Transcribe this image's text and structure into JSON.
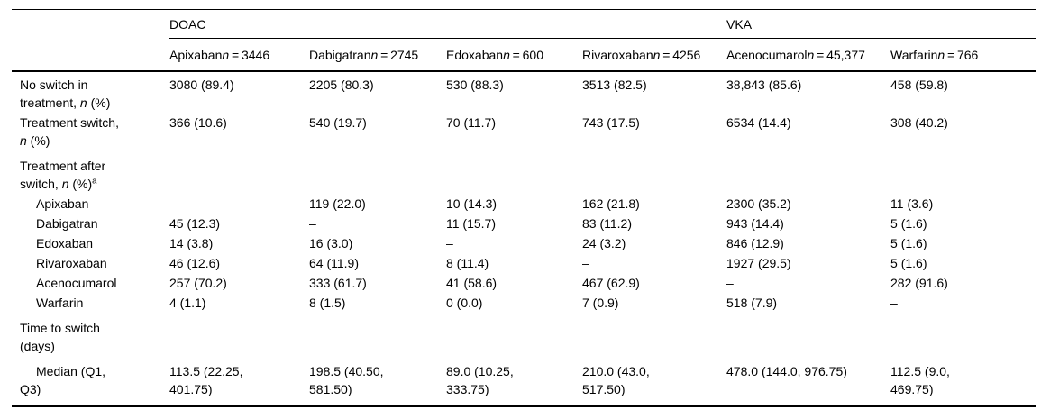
{
  "table": {
    "n_symbol": "n",
    "group_header": {
      "doac": "DOAC",
      "vka": "VKA"
    },
    "columns": [
      {
        "name": "Apixaban",
        "n": "3446"
      },
      {
        "name": "Dabigatran",
        "n": "2745"
      },
      {
        "name": "Edoxaban",
        "n": "600"
      },
      {
        "name": "Rivaroxaban",
        "n": "4256"
      },
      {
        "name": "Acenocumarol",
        "n": "45,377"
      },
      {
        "name": "Warfarin",
        "n": "766"
      }
    ],
    "rows": [
      {
        "name": "no-switch-in-treatment",
        "indent": false,
        "section_gap": false,
        "label": [
          {
            "t": "No switch in"
          },
          {
            "br": true
          },
          {
            "t": "treatment, "
          },
          {
            "t": "n",
            "i": true
          },
          {
            "t": " (%)"
          }
        ],
        "cells": [
          "3080 (89.4)",
          "2205 (80.3)",
          "530 (88.3)",
          "3513 (82.5)",
          "38,843 (85.6)",
          "458 (59.8)"
        ]
      },
      {
        "name": "treatment-switch",
        "indent": false,
        "section_gap": false,
        "label": [
          {
            "t": "Treatment switch,"
          },
          {
            "br": true
          },
          {
            "t": "n",
            "i": true
          },
          {
            "t": " (%)"
          }
        ],
        "cells": [
          "366 (10.6)",
          "540 (19.7)",
          "70 (11.7)",
          "743 (17.5)",
          "6534 (14.4)",
          "308 (40.2)"
        ]
      },
      {
        "name": "treatment-after-switch",
        "indent": false,
        "section_gap": true,
        "label": [
          {
            "t": "Treatment after"
          },
          {
            "br": true
          },
          {
            "t": "switch, "
          },
          {
            "t": "n",
            "i": true
          },
          {
            "t": " (%)"
          },
          {
            "t": "a",
            "sup": true
          }
        ],
        "cells": [
          "",
          "",
          "",
          "",
          "",
          ""
        ]
      },
      {
        "name": "after-switch-apixaban",
        "indent": true,
        "section_gap": false,
        "label": [
          {
            "t": "Apixaban"
          }
        ],
        "cells": [
          "–",
          "119 (22.0)",
          "10 (14.3)",
          "162 (21.8)",
          "2300 (35.2)",
          "11 (3.6)"
        ]
      },
      {
        "name": "after-switch-dabigatran",
        "indent": true,
        "section_gap": false,
        "label": [
          {
            "t": "Dabigatran"
          }
        ],
        "cells": [
          "45 (12.3)",
          "–",
          "11 (15.7)",
          "83 (11.2)",
          "943 (14.4)",
          "5 (1.6)"
        ]
      },
      {
        "name": "after-switch-edoxaban",
        "indent": true,
        "section_gap": false,
        "label": [
          {
            "t": "Edoxaban"
          }
        ],
        "cells": [
          "14 (3.8)",
          "16 (3.0)",
          "–",
          "24 (3.2)",
          "846 (12.9)",
          "5 (1.6)"
        ]
      },
      {
        "name": "after-switch-rivaroxaban",
        "indent": true,
        "section_gap": false,
        "label": [
          {
            "t": "Rivaroxaban"
          }
        ],
        "cells": [
          "46 (12.6)",
          "64 (11.9)",
          "8 (11.4)",
          "–",
          "1927 (29.5)",
          "5 (1.6)"
        ]
      },
      {
        "name": "after-switch-acenocumarol",
        "indent": true,
        "section_gap": false,
        "label": [
          {
            "t": "Acenocumarol"
          }
        ],
        "cells": [
          "257 (70.2)",
          "333 (61.7)",
          "41 (58.6)",
          "467 (62.9)",
          "–",
          "282 (91.6)"
        ]
      },
      {
        "name": "after-switch-warfarin",
        "indent": true,
        "section_gap": false,
        "label": [
          {
            "t": "Warfarin"
          }
        ],
        "cells": [
          "4 (1.1)",
          "8 (1.5)",
          "0 (0.0)",
          "7 (0.9)",
          "518 (7.9)",
          "–"
        ]
      },
      {
        "name": "time-to-switch",
        "indent": false,
        "section_gap": true,
        "label": [
          {
            "t": "Time to switch"
          },
          {
            "br": true
          },
          {
            "t": "(days)"
          }
        ],
        "cells": [
          "",
          "",
          "",
          "",
          "",
          ""
        ]
      },
      {
        "name": "median-q1-q3",
        "indent": true,
        "section_gap": true,
        "label": [
          {
            "t": "Median (Q1,"
          },
          {
            "br": true
          },
          {
            "t": "Q3)"
          }
        ],
        "cells": [
          "113.5 (22.25,\n401.75)",
          "198.5 (40.50,\n581.50)",
          "89.0 (10.25,\n333.75)",
          "210.0 (43.0,\n517.50)",
          "478.0 (144.0, 976.75)",
          "112.5 (9.0,\n469.75)"
        ]
      }
    ]
  }
}
